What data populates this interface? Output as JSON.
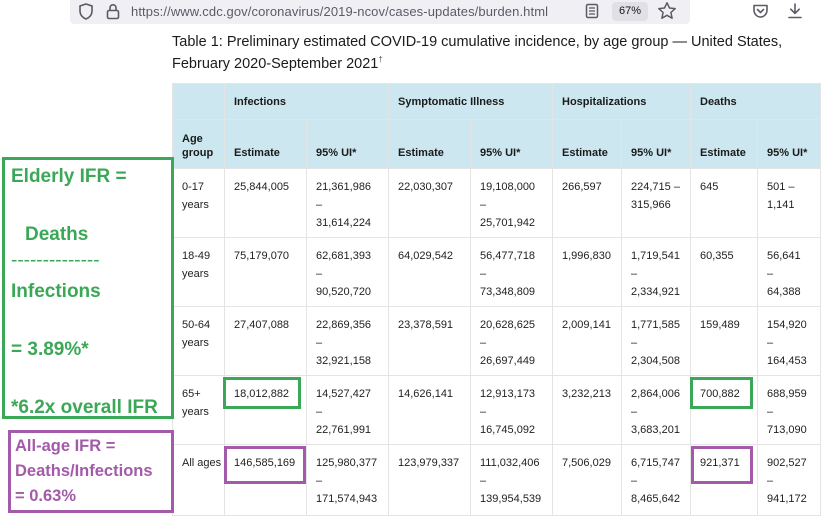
{
  "browser": {
    "url": "https://www.cdc.gov/coronavirus/2019-ncov/cases-updates/burden.html",
    "zoom": "67%"
  },
  "table": {
    "title": "Table 1: Preliminary estimated COVID-19 cumulative incidence, by age group — United States, February 2020-September 2021",
    "title_marker": "†",
    "groups": [
      "Infections",
      "Symptomatic Illness",
      "Hospitalizations",
      "Deaths"
    ],
    "age_header": "Age group",
    "estimate_label": "Estimate",
    "ui_label": "95% UI*",
    "rows": [
      {
        "age": "0-17 years",
        "infections_est": "25,844,005",
        "infections_ui": [
          "21,361,986",
          "–",
          "31,614,224"
        ],
        "symptomatic_est": "22,030,307",
        "symptomatic_ui": [
          "19,108,000",
          "–",
          "25,701,942"
        ],
        "hosp_est": "266,597",
        "hosp_ui": [
          "224,715 –",
          "315,966"
        ],
        "deaths_est": "645",
        "deaths_ui": [
          "501 –",
          "1,141"
        ]
      },
      {
        "age": "18-49 years",
        "infections_est": "75,179,070",
        "infections_ui": [
          "62,681,393",
          "–",
          "90,520,720"
        ],
        "symptomatic_est": "64,029,542",
        "symptomatic_ui": [
          "56,477,718",
          "–",
          "73,348,809"
        ],
        "hosp_est": "1,996,830",
        "hosp_ui": [
          "1,719,541",
          "–",
          "2,334,921"
        ],
        "deaths_est": "60,355",
        "deaths_ui": [
          "56,641",
          "–",
          "64,388"
        ]
      },
      {
        "age": "50-64 years",
        "infections_est": "27,407,088",
        "infections_ui": [
          "22,869,356",
          "–",
          "32,921,158"
        ],
        "symptomatic_est": "23,378,591",
        "symptomatic_ui": [
          "20,628,625",
          "–",
          "26,697,449"
        ],
        "hosp_est": "2,009,141",
        "hosp_ui": [
          "1,771,585",
          "–",
          "2,304,508"
        ],
        "deaths_est": "159,489",
        "deaths_ui": [
          "154,920",
          "–",
          "164,453"
        ]
      },
      {
        "age": "65+ years",
        "infections_est": "18,012,882",
        "infections_ui": [
          "14,527,427",
          "–",
          "22,761,991"
        ],
        "symptomatic_est": "14,626,141",
        "symptomatic_ui": [
          "12,913,173",
          "–",
          "16,745,092"
        ],
        "hosp_est": "3,232,213",
        "hosp_ui": [
          "2,864,006",
          "–",
          "3,683,201"
        ],
        "deaths_est": "700,882",
        "deaths_ui": [
          "688,959",
          "–",
          "713,090"
        ]
      },
      {
        "age": "All ages",
        "infections_est": "146,585,169",
        "infections_ui": [
          "125,980,377",
          "–",
          "171,574,943"
        ],
        "symptomatic_est": "123,979,337",
        "symptomatic_ui": [
          "111,032,406",
          "–",
          "139,954,539"
        ],
        "hosp_est": "7,506,029",
        "hosp_ui": [
          "6,715,747",
          "–",
          "8,465,642"
        ],
        "deaths_est": "921,371",
        "deaths_ui": [
          "902,527",
          "–",
          "941,172"
        ]
      }
    ]
  },
  "annotations": {
    "elderly": {
      "line1": "Elderly IFR =",
      "line2": "Deaths",
      "line3": "--------------",
      "line4": "Infections",
      "line5": "= 3.89%*",
      "line6": "*6.2x overall IFR"
    },
    "all_age": {
      "line1": "All-age IFR =",
      "line2": "Deaths/Infections",
      "line3": "= 0.63%"
    }
  },
  "colors": {
    "header_bg": "#cce7ef",
    "elderly_accent": "#3aa856",
    "all_age_accent": "#a35aa8"
  },
  "icons": [
    "shield-icon",
    "lock-icon",
    "reader-view-icon",
    "star-icon",
    "pocket-icon",
    "download-icon"
  ]
}
